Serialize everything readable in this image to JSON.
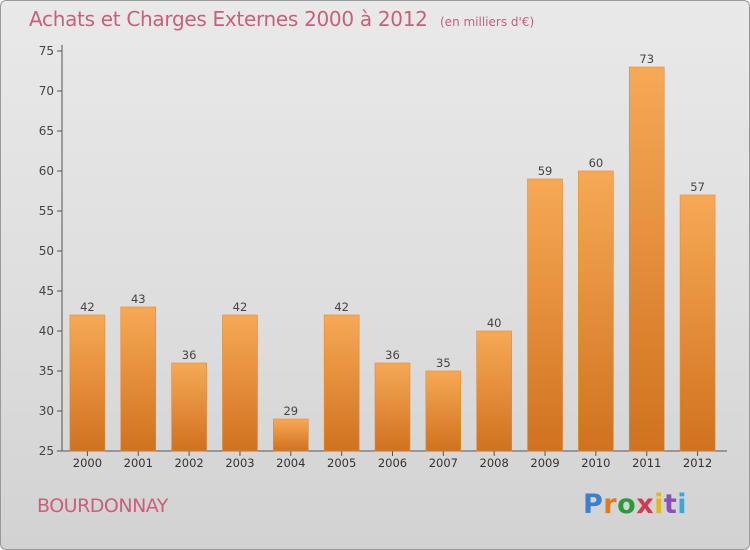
{
  "title": "Achats et Charges Externes 2000 à 2012",
  "subtitle": "(en milliers d'€)",
  "commune": "BOURDONNAY",
  "logo_letters": [
    "P",
    "r",
    "o",
    "x",
    "i",
    "t",
    "i"
  ],
  "colors": {
    "title": "#c8607a",
    "bar_top": "#f7a955",
    "bar_bottom": "#d0721f",
    "bar_edge": "#e58a34"
  },
  "chart_data": {
    "type": "bar",
    "title": "Achats et Charges Externes 2000 à 2012",
    "subtitle": "(en milliers d'€)",
    "categories": [
      "2000",
      "2001",
      "2002",
      "2003",
      "2004",
      "2005",
      "2006",
      "2007",
      "2008",
      "2009",
      "2010",
      "2011",
      "2012"
    ],
    "values": [
      42,
      43,
      36,
      42,
      29,
      42,
      36,
      35,
      40,
      59,
      60,
      73,
      57
    ],
    "ylim": [
      25,
      75
    ],
    "yticks": [
      25,
      30,
      35,
      40,
      45,
      50,
      55,
      60,
      65,
      70,
      75
    ],
    "grid": false,
    "legend": "none"
  }
}
